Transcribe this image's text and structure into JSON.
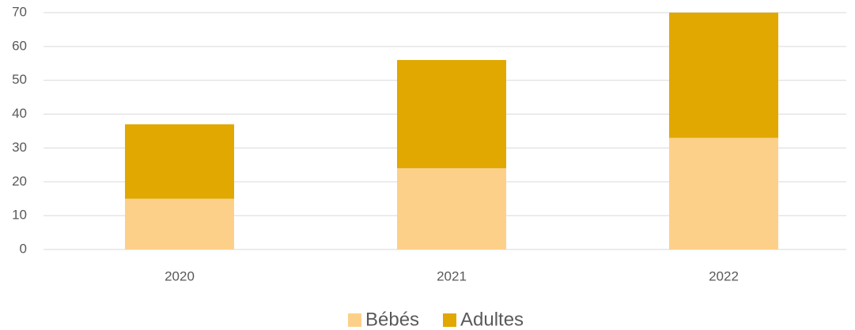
{
  "chart_data": {
    "type": "stacked_bar",
    "categories": [
      "2020",
      "2021",
      "2022"
    ],
    "series": [
      {
        "name": "Bébés",
        "color": "#fdd08a",
        "values": [
          15,
          24,
          33
        ]
      },
      {
        "name": "Adultes",
        "color": "#e0a800",
        "values": [
          22,
          32,
          37
        ]
      }
    ],
    "ylim": [
      0,
      70
    ],
    "yticks": [
      0,
      10,
      20,
      30,
      40,
      50,
      60,
      70
    ],
    "grid": true,
    "legend": "bottom"
  }
}
